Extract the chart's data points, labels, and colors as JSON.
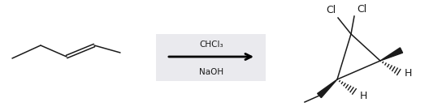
{
  "bg_color": "#ffffff",
  "arrow_box_color": "#eaeaee",
  "arrow_color": "#000000",
  "line_color": "#1a1a1a",
  "text_color": "#1a1a1a",
  "reagent1": "CHCl₃",
  "reagent2": "NaOH",
  "label_Cl1": "Cl",
  "label_Cl2": "Cl",
  "label_H1": "H",
  "label_H2": "H",
  "font_size_reagent": 7.5,
  "font_size_label": 9
}
